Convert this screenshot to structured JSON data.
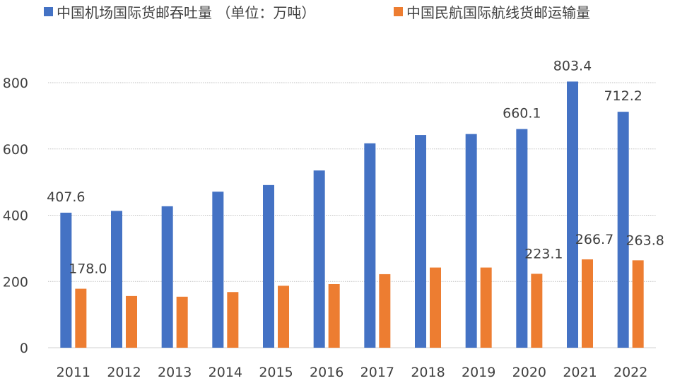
{
  "chart_data": {
    "type": "bar",
    "categories": [
      "2011",
      "2012",
      "2013",
      "2014",
      "2015",
      "2016",
      "2017",
      "2018",
      "2019",
      "2020",
      "2021",
      "2022"
    ],
    "series": [
      {
        "name": "中国机场国际货邮吞吐量 （单位：万吨）",
        "color": "#4472C4",
        "values": [
          407.6,
          413,
          427,
          471,
          491,
          535,
          617,
          642,
          645,
          660.1,
          803.4,
          712.2
        ],
        "data_labels": {
          "0": "407.6",
          "9": "660.1",
          "10": "803.4",
          "11": "712.2"
        }
      },
      {
        "name": "中国民航国际航线货邮运输量",
        "color": "#ED7D31",
        "values": [
          178.0,
          156,
          154,
          168,
          187,
          192,
          222,
          242,
          242,
          223.1,
          266.7,
          263.8
        ],
        "data_labels": {
          "0": "178.0",
          "9": "223.1",
          "10": "266.7",
          "11": "263.8"
        }
      }
    ],
    "yticks": [
      0,
      200,
      400,
      600,
      800
    ],
    "ylim": [
      0,
      800
    ],
    "grid": true,
    "legend": "top-left"
  }
}
